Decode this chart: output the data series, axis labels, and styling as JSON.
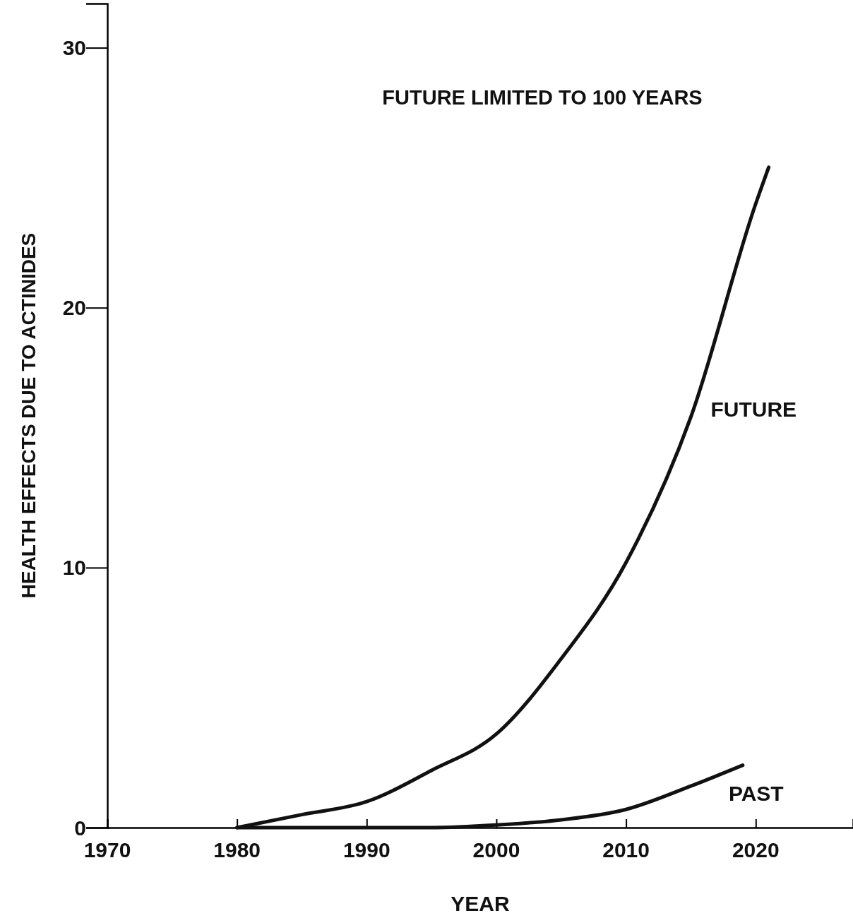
{
  "chart_data": {
    "type": "line",
    "title": "FUTURE LIMITED TO 100 YEARS",
    "xlabel": "YEAR",
    "ylabel": "HEALTH EFFECTS DUE TO ACTINIDES",
    "xlim": [
      1970,
      2027.5
    ],
    "ylim": [
      0,
      31.7
    ],
    "xticks": [
      1970,
      1980,
      1990,
      2000,
      2010,
      2020
    ],
    "yticks": [
      0,
      10,
      20,
      30
    ],
    "series": [
      {
        "name": "FUTURE",
        "color": "#111111",
        "x": [
          1980,
          1985,
          1990,
          1995,
          2000,
          2005,
          2010,
          2015,
          2020,
          2021
        ],
        "values": [
          0,
          0.5,
          1.0,
          2.2,
          3.6,
          6.5,
          10.2,
          15.8,
          24,
          25.4
        ]
      },
      {
        "name": "PAST",
        "color": "#111111",
        "x": [
          1980,
          1985,
          1990,
          1995,
          2000,
          2005,
          2010,
          2015,
          2019
        ],
        "values": [
          0,
          0,
          0,
          0,
          0.1,
          0.3,
          0.7,
          1.6,
          2.4
        ]
      }
    ],
    "grid": false,
    "legend": false,
    "marker": "none",
    "line_style": "solid"
  }
}
